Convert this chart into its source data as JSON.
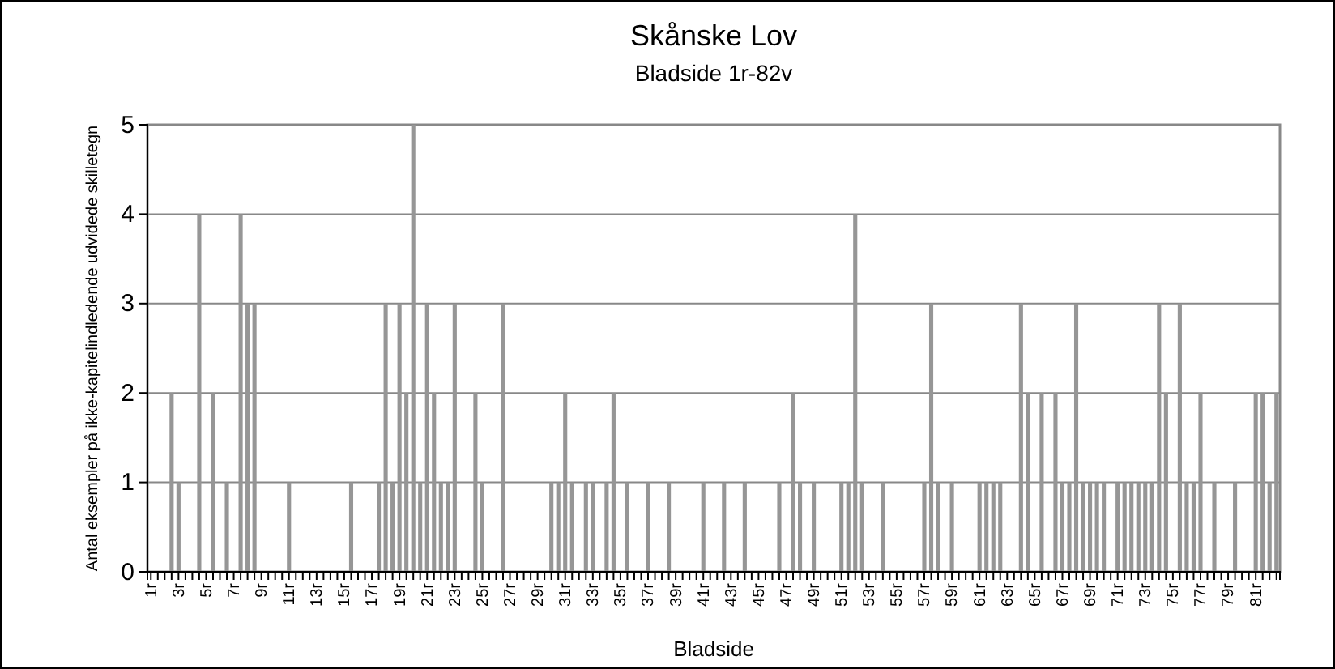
{
  "chart_data": {
    "type": "bar",
    "title": "Skånske Lov",
    "subtitle": "Bladside 1r-82v",
    "xlabel": "Bladside",
    "ylabel": "Antal eksempler på ikke-kapitelindledende udvidede skilletegn",
    "categories": [
      "1r",
      null,
      null,
      null,
      "3r",
      null,
      null,
      null,
      "5r",
      null,
      null,
      null,
      "7r",
      null,
      null,
      null,
      "9r",
      null,
      null,
      null,
      "11r",
      null,
      null,
      null,
      "13r",
      null,
      null,
      null,
      "15r",
      null,
      null,
      null,
      "17r",
      null,
      null,
      null,
      "19r",
      null,
      null,
      null,
      "21r",
      null,
      null,
      null,
      "23r",
      null,
      null,
      null,
      "25r",
      null,
      null,
      null,
      "27r",
      null,
      null,
      null,
      "29r",
      null,
      null,
      null,
      "31r",
      null,
      null,
      null,
      "33r",
      null,
      null,
      null,
      "35r",
      null,
      null,
      null,
      "37r",
      null,
      null,
      null,
      "39r",
      null,
      null,
      null,
      "41r",
      null,
      null,
      null,
      "43r",
      null,
      null,
      null,
      "45r",
      null,
      null,
      null,
      "47r",
      null,
      null,
      null,
      "49r",
      null,
      null,
      null,
      "51r",
      null,
      null,
      null,
      "53r",
      null,
      null,
      null,
      "55r",
      null,
      null,
      null,
      "57r",
      null,
      null,
      null,
      "59r",
      null,
      null,
      null,
      "61r",
      null,
      null,
      null,
      "63r",
      null,
      null,
      null,
      "65r",
      null,
      null,
      null,
      "67r",
      null,
      null,
      null,
      "69r",
      null,
      null,
      null,
      "71r",
      null,
      null,
      null,
      "73r",
      null,
      null,
      null,
      "75r",
      null,
      null,
      null,
      "77r",
      null,
      null,
      null,
      "79r",
      null,
      null,
      null,
      "81r",
      null,
      null,
      null
    ],
    "values": [
      0,
      0,
      0,
      2,
      1,
      0,
      0,
      4,
      0,
      2,
      0,
      1,
      0,
      4,
      3,
      3,
      0,
      0,
      0,
      0,
      1,
      0,
      0,
      0,
      0,
      0,
      0,
      0,
      0,
      1,
      0,
      0,
      0,
      1,
      3,
      1,
      3,
      2,
      5,
      1,
      3,
      2,
      1,
      1,
      3,
      0,
      0,
      2,
      1,
      0,
      0,
      3,
      0,
      0,
      0,
      0,
      0,
      0,
      1,
      1,
      2,
      1,
      0,
      1,
      1,
      0,
      1,
      2,
      0,
      1,
      0,
      0,
      1,
      0,
      0,
      1,
      0,
      0,
      0,
      0,
      1,
      0,
      0,
      1,
      0,
      0,
      1,
      0,
      0,
      0,
      0,
      1,
      0,
      2,
      1,
      0,
      1,
      0,
      0,
      0,
      1,
      1,
      4,
      1,
      0,
      0,
      1,
      0,
      0,
      0,
      0,
      0,
      1,
      3,
      1,
      0,
      1,
      0,
      0,
      0,
      1,
      1,
      1,
      1,
      0,
      0,
      3,
      2,
      0,
      2,
      0,
      2,
      1,
      1,
      3,
      1,
      1,
      1,
      1,
      0,
      1,
      1,
      1,
      1,
      1,
      1,
      3,
      2,
      0,
      3,
      1,
      1,
      2,
      0,
      1,
      0,
      0,
      1,
      0,
      0,
      2,
      2,
      1,
      2
    ],
    "color": "#969696",
    "ylim": [
      0,
      5
    ],
    "yticks": [
      0,
      1,
      2,
      3,
      4,
      5
    ],
    "grid": "y"
  }
}
